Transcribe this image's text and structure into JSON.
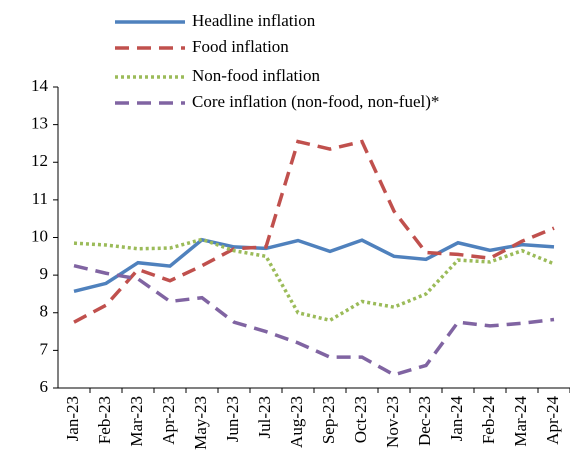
{
  "chart_data": {
    "type": "line",
    "categories": [
      "Jan-23",
      "Feb-23",
      "Mar-23",
      "Apr-23",
      "May-23",
      "Jun-23",
      "Jul-23",
      "Aug-23",
      "Sep-23",
      "Oct-23",
      "Nov-23",
      "Dec-23",
      "Jan-24",
      "Feb-24",
      "Mar-24",
      "Apr-24"
    ],
    "series": [
      {
        "name": "Headline inflation",
        "color": "#4f81bd",
        "line_style": "solid",
        "values": [
          8.57,
          8.78,
          9.33,
          9.24,
          9.94,
          9.75,
          9.71,
          9.92,
          9.63,
          9.93,
          9.5,
          9.42,
          9.86,
          9.66,
          9.81,
          9.75
        ]
      },
      {
        "name": "Food inflation",
        "color": "#c0504d",
        "line_style": "dashed",
        "values": [
          7.75,
          8.2,
          9.15,
          8.85,
          9.25,
          9.7,
          9.75,
          12.55,
          12.35,
          12.55,
          10.7,
          9.6,
          9.55,
          9.45,
          9.9,
          10.25
        ]
      },
      {
        "name": "Non-food inflation",
        "color": "#9bbb59",
        "line_style": "dotted",
        "values": [
          9.85,
          9.8,
          9.7,
          9.72,
          9.95,
          9.65,
          9.5,
          8.0,
          7.8,
          8.3,
          8.15,
          8.5,
          9.4,
          9.35,
          9.65,
          9.3
        ]
      },
      {
        "name": "Core inflation (non-food, non-fuel)*",
        "color": "#8064a2",
        "line_style": "dashed",
        "values": [
          9.25,
          9.05,
          8.9,
          8.3,
          8.4,
          7.75,
          7.5,
          7.2,
          6.82,
          6.82,
          6.35,
          6.6,
          7.75,
          7.65,
          7.72,
          7.82
        ]
      }
    ],
    "ylim": [
      6,
      14
    ],
    "yticks": [
      6,
      7,
      8,
      9,
      10,
      11,
      12,
      13,
      14
    ],
    "legend": "top-left"
  }
}
